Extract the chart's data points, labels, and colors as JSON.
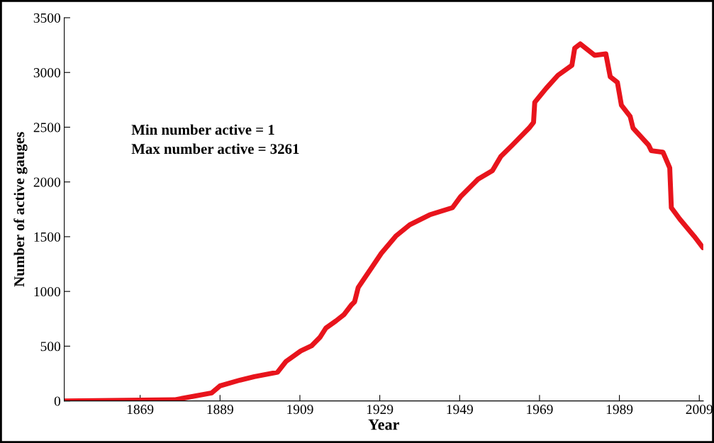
{
  "chart_data": {
    "type": "line",
    "xlabel": "Year",
    "ylabel": "Number of active gauges",
    "annotations": [
      "Min number active = 1",
      "Max number active = 3261"
    ],
    "xlim": [
      1850,
      2010
    ],
    "xticks": [
      1869,
      1889,
      1909,
      1929,
      1949,
      1969,
      1989,
      2009
    ],
    "ylim": [
      0,
      3500
    ],
    "yticks": [
      0,
      500,
      1000,
      1500,
      2000,
      2500,
      3000,
      3500
    ],
    "grid": false,
    "legend": false,
    "marker": "none",
    "line_style": "solid",
    "series": [
      {
        "color": "#e8141c",
        "x": [
          1850,
          1877.6,
          1886.9,
          1889,
          1894,
          1897.6,
          1903.4,
          1905.5,
          1909.2,
          1911.9,
          1914,
          1915.5,
          1918,
          1920,
          1921.8,
          1922.7,
          1923.6,
          1926.5,
          1929.4,
          1933,
          1936.5,
          1941.5,
          1947.2,
          1949.3,
          1953.6,
          1957.2,
          1959.3,
          1962.2,
          1966.4,
          1967.5,
          1967.8,
          1970.7,
          1973.6,
          1977.1,
          1977.8,
          1979.2,
          1982.8,
          1985.6,
          1986.7,
          1988.5,
          1989.5,
          1991.7,
          1992.4,
          1996.3,
          1997,
          1999.9,
          2001.6,
          2002,
          2004.1,
          2007.7,
          2009.9
        ],
        "values": [
          0,
          10,
          73,
          138,
          190,
          222,
          262,
          360,
          456,
          503,
          580,
          665,
          730,
          787,
          873,
          906,
          1036,
          1192,
          1349,
          1505,
          1609,
          1700,
          1765,
          1869,
          2025,
          2103,
          2233,
          2337,
          2493,
          2545,
          2727,
          2857,
          2974,
          3065,
          3221,
          3261,
          3157,
          3170,
          2961,
          2909,
          2701,
          2597,
          2493,
          2337,
          2285,
          2272,
          2129,
          1765,
          1661,
          1505,
          1400
        ]
      }
    ]
  }
}
